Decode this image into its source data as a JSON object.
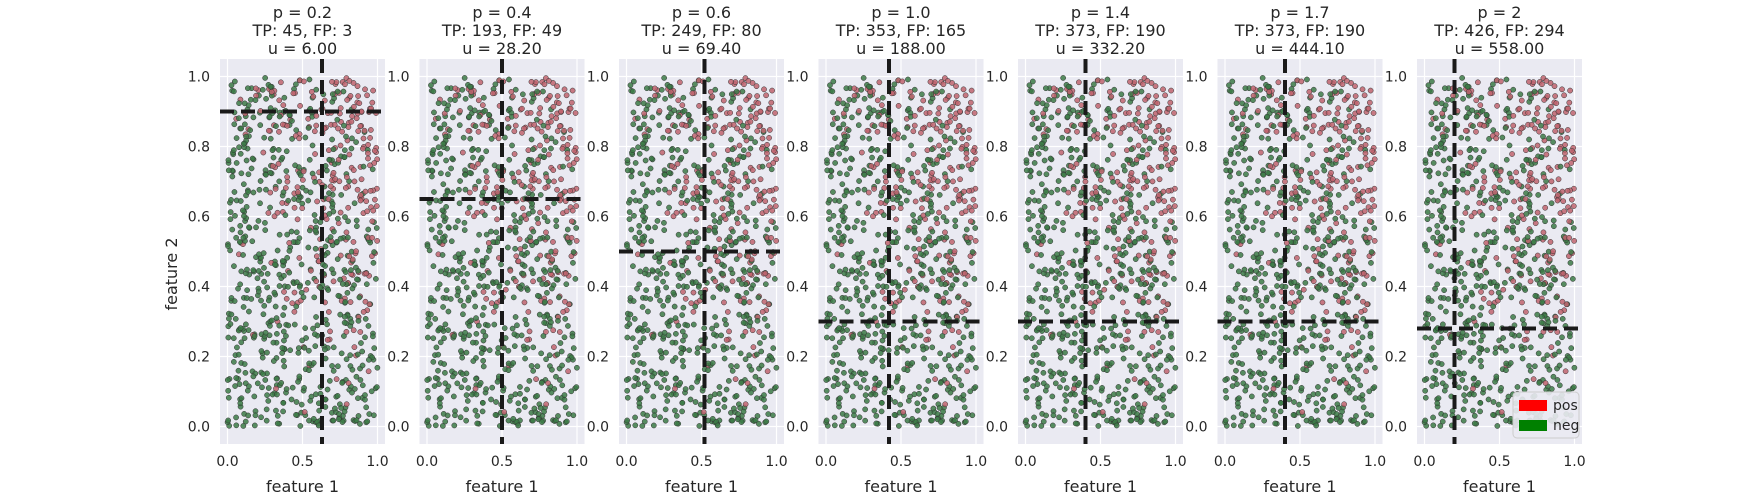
{
  "figure": {
    "ylabel": "feature 2",
    "xlabel": "feature 1"
  },
  "legend": {
    "entries": [
      {
        "label": "pos",
        "color": "#ff0000"
      },
      {
        "label": "neg",
        "color": "#008000"
      }
    ],
    "placement": "lower-right of last panel"
  },
  "colors": {
    "axes_background": "#eaeaf2",
    "grid": "#ffffff",
    "positive_points": "#c0646e",
    "negative_points": "#3c7a46",
    "point_edge": "#333333",
    "threshold_line": "#1a1a1a"
  },
  "chart_data": [
    {
      "type": "scatter",
      "title_lines": [
        "p = 0.2",
        "TP: 45, FP: 3",
        "u = 6.00"
      ],
      "threshold_x": 0.63,
      "threshold_y": 0.9,
      "xlim": [
        -0.05,
        1.05
      ],
      "ylim": [
        -0.05,
        1.05
      ],
      "xticks": [
        "0.0",
        "0.5",
        "1.0"
      ],
      "yticks": [
        "0.0",
        "0.2",
        "0.4",
        "0.6",
        "0.8",
        "1.0"
      ],
      "grid": true
    },
    {
      "type": "scatter",
      "title_lines": [
        "p = 0.4",
        "TP: 193, FP: 49",
        "u = 28.20"
      ],
      "threshold_x": 0.5,
      "threshold_y": 0.65,
      "xlim": [
        -0.05,
        1.05
      ],
      "ylim": [
        -0.05,
        1.05
      ],
      "xticks": [
        "0.0",
        "0.5",
        "1.0"
      ],
      "yticks": [
        "0.0",
        "0.2",
        "0.4",
        "0.6",
        "0.8",
        "1.0"
      ],
      "grid": true
    },
    {
      "type": "scatter",
      "title_lines": [
        "p = 0.6",
        "TP: 249, FP: 80",
        "u = 69.40"
      ],
      "threshold_x": 0.52,
      "threshold_y": 0.5,
      "xlim": [
        -0.05,
        1.05
      ],
      "ylim": [
        -0.05,
        1.05
      ],
      "xticks": [
        "0.0",
        "0.5",
        "1.0"
      ],
      "yticks": [
        "0.0",
        "0.2",
        "0.4",
        "0.6",
        "0.8",
        "1.0"
      ],
      "grid": true
    },
    {
      "type": "scatter",
      "title_lines": [
        "p = 1.0",
        "TP: 353, FP: 165",
        "u = 188.00"
      ],
      "threshold_x": 0.42,
      "threshold_y": 0.3,
      "xlim": [
        -0.05,
        1.05
      ],
      "ylim": [
        -0.05,
        1.05
      ],
      "xticks": [
        "0.0",
        "0.5",
        "1.0"
      ],
      "yticks": [
        "0.0",
        "0.2",
        "0.4",
        "0.6",
        "0.8",
        "1.0"
      ],
      "grid": true
    },
    {
      "type": "scatter",
      "title_lines": [
        "p = 1.4",
        "TP: 373, FP: 190",
        "u = 332.20"
      ],
      "threshold_x": 0.4,
      "threshold_y": 0.3,
      "xlim": [
        -0.05,
        1.05
      ],
      "ylim": [
        -0.05,
        1.05
      ],
      "xticks": [
        "0.0",
        "0.5",
        "1.0"
      ],
      "yticks": [
        "0.0",
        "0.2",
        "0.4",
        "0.6",
        "0.8",
        "1.0"
      ],
      "grid": true
    },
    {
      "type": "scatter",
      "title_lines": [
        "p = 1.7",
        "TP: 373, FP: 190",
        "u = 444.10"
      ],
      "threshold_x": 0.4,
      "threshold_y": 0.3,
      "xlim": [
        -0.05,
        1.05
      ],
      "ylim": [
        -0.05,
        1.05
      ],
      "xticks": [
        "0.0",
        "0.5",
        "1.0"
      ],
      "yticks": [
        "0.0",
        "0.2",
        "0.4",
        "0.6",
        "0.8",
        "1.0"
      ],
      "grid": true
    },
    {
      "type": "scatter",
      "title_lines": [
        "p = 2",
        "TP: 426, FP: 294",
        "u = 558.00"
      ],
      "threshold_x": 0.2,
      "threshold_y": 0.28,
      "xlim": [
        -0.05,
        1.05
      ],
      "ylim": [
        -0.05,
        1.05
      ],
      "xticks": [
        "0.0",
        "0.5",
        "1.0"
      ],
      "yticks": [
        "0.0",
        "0.2",
        "0.4",
        "0.6",
        "0.8",
        "1.0"
      ],
      "grid": true
    }
  ]
}
